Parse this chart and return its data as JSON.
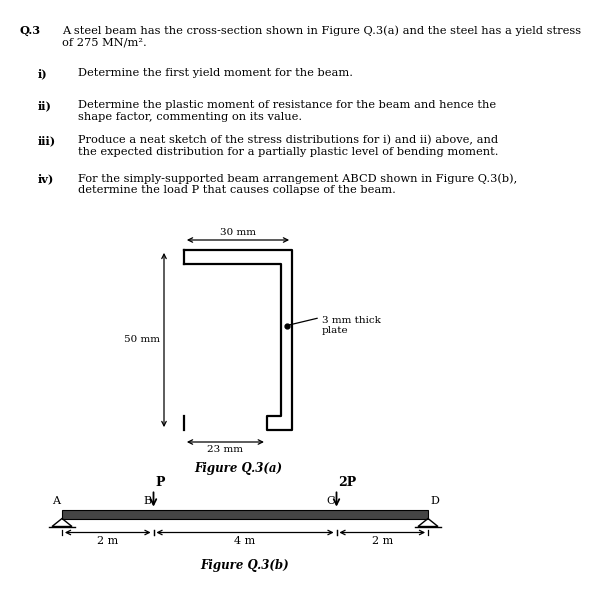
{
  "bg_color": "#ffffff",
  "text_color": "#000000",
  "heading_label": "Q.3",
  "heading_text": "A steel beam has the cross-section shown in Figure Q.3(a) and the steel has a yield stress\nof 275 MN/m².",
  "items": [
    {
      "label": "i)",
      "text": "Determine the first yield moment for the beam."
    },
    {
      "label": "ii)",
      "text": "Determine the plastic moment of resistance for the beam and hence the\nshape factor, commenting on its value."
    },
    {
      "label": "iii)",
      "text": "Produce a neat sketch of the stress distributions for i) and ii) above, and\nthe expected distribution for a partially plastic level of bending moment."
    },
    {
      "label": "iv)",
      "text": "For the simply-supported beam arrangement ABCD shown in Figure Q.3(b),\ndetermine the load P that causes collapse of the beam."
    }
  ],
  "fig_a_label": "Figure Q.3(a)",
  "fig_b_label": "Figure Q.3(b)",
  "cross_section": {
    "label_50mm": "50 mm",
    "label_30mm": "30 mm",
    "label_23mm": "23 mm",
    "label_plate": "3 mm thick\nplate"
  },
  "beam": {
    "load_B_label": "P",
    "load_C_label": "2P",
    "label_A": "A",
    "label_B": "B",
    "label_C": "C",
    "label_D": "D",
    "dim_AB": "2 m",
    "dim_BC": "4 m",
    "dim_CD": "2 m"
  }
}
